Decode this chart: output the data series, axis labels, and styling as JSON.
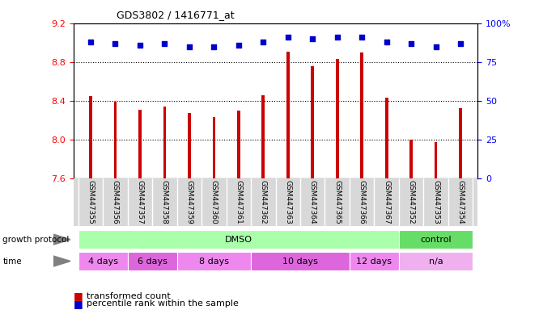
{
  "title": "GDS3802 / 1416771_at",
  "samples": [
    "GSM447355",
    "GSM447356",
    "GSM447357",
    "GSM447358",
    "GSM447359",
    "GSM447360",
    "GSM447361",
    "GSM447362",
    "GSM447363",
    "GSM447364",
    "GSM447365",
    "GSM447366",
    "GSM447367",
    "GSM447352",
    "GSM447353",
    "GSM447354"
  ],
  "bar_values": [
    8.45,
    8.39,
    8.31,
    8.34,
    8.27,
    8.23,
    8.3,
    8.46,
    8.91,
    8.76,
    8.83,
    8.9,
    8.43,
    8.0,
    7.97,
    8.32
  ],
  "percentile_values": [
    88,
    87,
    86,
    87,
    85,
    85,
    86,
    88,
    91,
    90,
    91,
    91,
    88,
    87,
    85,
    87
  ],
  "bar_color": "#cc0000",
  "dot_color": "#0000cc",
  "ylim_left": [
    7.6,
    9.2
  ],
  "ylim_right": [
    0,
    100
  ],
  "yticks_left": [
    7.6,
    8.0,
    8.4,
    8.8,
    9.2
  ],
  "yticks_right": [
    0,
    25,
    50,
    75,
    100
  ],
  "ytick_labels_right": [
    "0",
    "25",
    "50",
    "75",
    "100%"
  ],
  "grid_values": [
    8.0,
    8.4,
    8.8
  ],
  "growth_protocol_groups": [
    {
      "label": "DMSO",
      "start": 0,
      "end": 13,
      "color": "#aaffaa"
    },
    {
      "label": "control",
      "start": 13,
      "end": 16,
      "color": "#66dd66"
    }
  ],
  "time_groups": [
    {
      "label": "4 days",
      "start": 0,
      "end": 2,
      "color": "#ee88ee"
    },
    {
      "label": "6 days",
      "start": 2,
      "end": 4,
      "color": "#dd66dd"
    },
    {
      "label": "8 days",
      "start": 4,
      "end": 7,
      "color": "#ee88ee"
    },
    {
      "label": "10 days",
      "start": 7,
      "end": 11,
      "color": "#dd66dd"
    },
    {
      "label": "12 days",
      "start": 11,
      "end": 13,
      "color": "#ee88ee"
    },
    {
      "label": "n/a",
      "start": 13,
      "end": 16,
      "color": "#f0b0f0"
    }
  ],
  "legend_red": "transformed count",
  "legend_blue": "percentile rank within the sample",
  "bar_bottom": 7.6,
  "bar_width": 0.12
}
